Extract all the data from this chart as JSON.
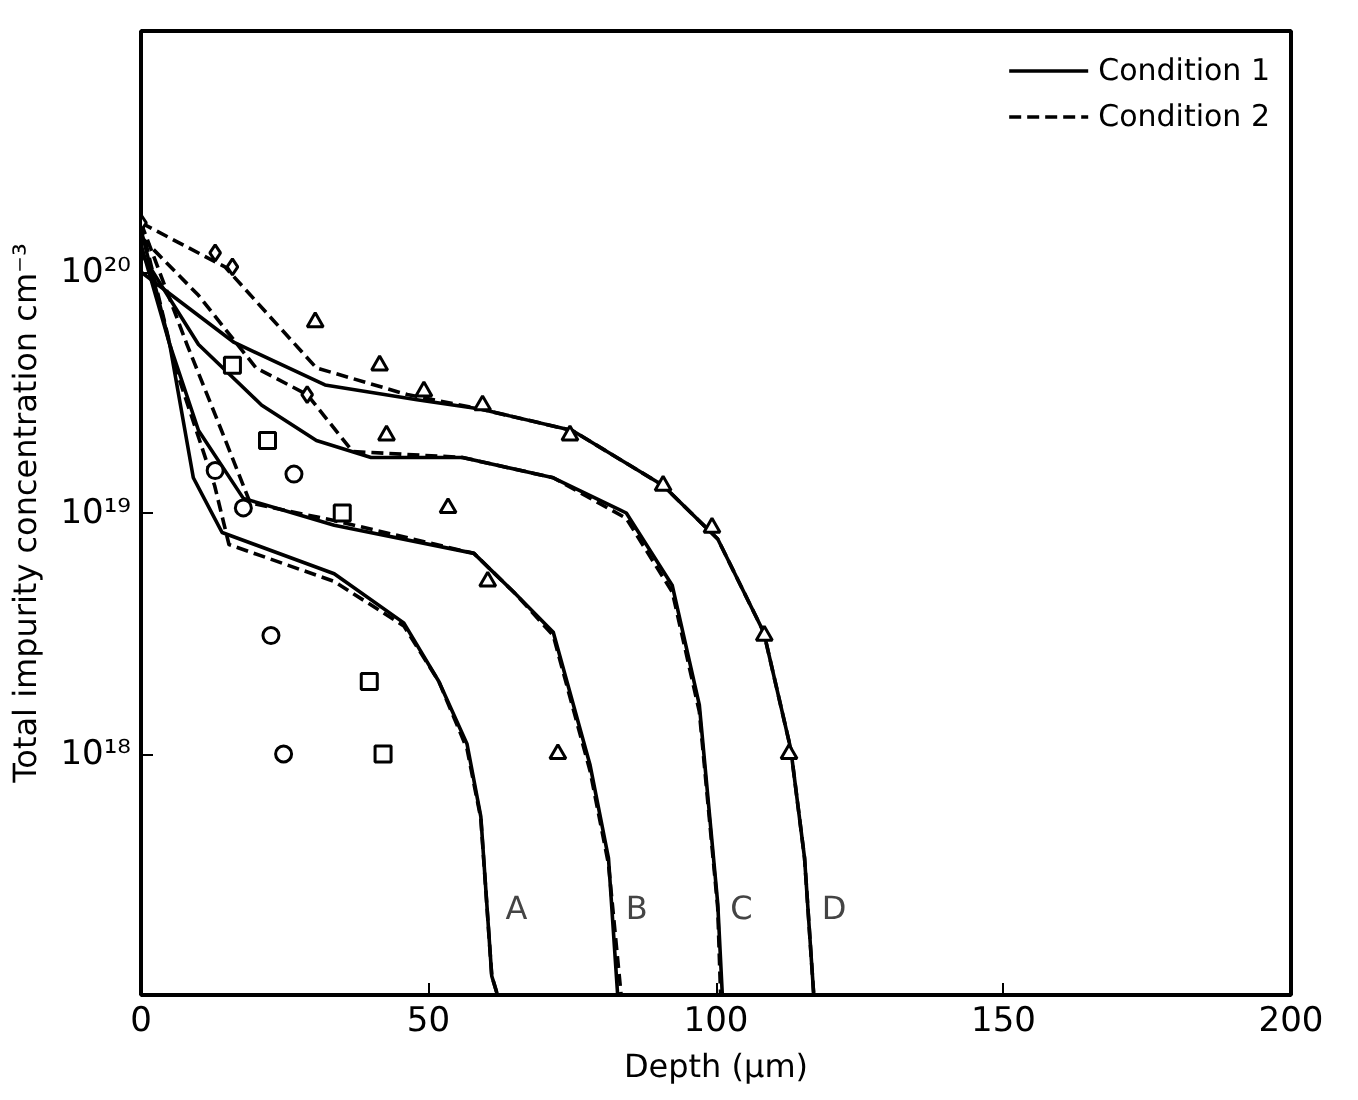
{
  "chart_data": {
    "type": "line",
    "xlabel": "Depth (μm)",
    "ylabel": "Total impurity concentration cm⁻³",
    "xlim": [
      0,
      200
    ],
    "xticks": [
      0,
      50,
      100,
      150,
      200
    ],
    "ylim": [
      1e+17,
      1e+21
    ],
    "yticks": [
      {
        "value": 1e+18,
        "label": "10¹⁸"
      },
      {
        "value": 1e+19,
        "label": "10¹⁹"
      },
      {
        "value": 1e+20,
        "label": "10²⁰"
      }
    ],
    "log": "y",
    "grid": false,
    "legend": "top right",
    "series": [
      {
        "name": "Condition 1",
        "line_style": "solid",
        "color": "#000000",
        "x": [
          0,
          5,
          9.1,
          14.1,
          33.6,
          45.7,
          51.8,
          56.7,
          59.1,
          61,
          62
        ],
        "values": [
          1.5e+20,
          5e+19,
          1.4e+19,
          8.3e+18,
          5.6e+18,
          3.5e+18,
          2e+18,
          1.1e+18,
          5.5e+17,
          1.2e+17,
          1e+17
        ]
      },
      {
        "name": "Condition 2",
        "line_style": "dashed",
        "color": "#000000",
        "x": [
          0,
          6,
          12.8,
          15.3,
          33.6,
          45.7,
          51.8,
          56.7,
          59.1,
          61,
          62
        ],
        "values": [
          1.6e+20,
          4e+19,
          1.3e+19,
          7.4e+18,
          5.2e+18,
          3.4e+18,
          2e+18,
          1.05e+18,
          5.4e+17,
          1.2e+17,
          1e+17
        ]
      },
      {
        "type": "line",
        "line_style": "solid",
        "color": "#000000",
        "x": [
          0,
          5,
          10,
          17.8,
          33.6,
          57.9,
          65.2,
          71.7,
          78.1,
          81.3,
          82.9
        ],
        "values": [
          1.3e+20,
          5e+19,
          2.2e+19,
          1.15e+19,
          8.9e+18,
          6.8e+18,
          4.6e+18,
          3.2e+18,
          9e+17,
          3.7e+17,
          1e+17
        ]
      },
      {
        "type": "line",
        "line_style": "dashed",
        "color": "#000000",
        "x": [
          0,
          8,
          14,
          19,
          33.6,
          57.9,
          65.2,
          71.7,
          78.1,
          81.3,
          83.5
        ],
        "values": [
          1.6e+20,
          5e+19,
          2.2e+19,
          1.1e+19,
          9.3e+18,
          6.8e+18,
          4.6e+18,
          3.1e+18,
          8.5e+17,
          3.5e+17,
          1e+17
        ]
      },
      {
        "type": "line",
        "line_style": "solid",
        "color": "#000000",
        "x": [
          0,
          10,
          21,
          30.5,
          40,
          55.9,
          71.7,
          84.4,
          92.4,
          97.1,
          100.3,
          101.1
        ],
        "values": [
          1.2e+20,
          5e+19,
          2.8e+19,
          2e+19,
          1.7e+19,
          1.7e+19,
          1.4e+19,
          1e+19,
          5e+18,
          1.6e+18,
          2.4e+17,
          1e+17
        ]
      },
      {
        "type": "line",
        "line_style": "dashed",
        "color": "#000000",
        "x": [
          0,
          10,
          20,
          28.9,
          36.8,
          55.9,
          71.7,
          84.4,
          92.4,
          97.1,
          100.3,
          100.8
        ],
        "values": [
          1.4e+20,
          8e+19,
          4e+19,
          3.1e+19,
          1.8e+19,
          1.7e+19,
          1.4e+19,
          9.5e+18,
          4.7e+18,
          1.5e+18,
          2.3e+17,
          1e+17
        ]
      },
      {
        "type": "line",
        "line_style": "solid",
        "color": "#000000",
        "x": [
          0,
          16.2,
          32,
          48,
          59,
          75,
          90.8,
          100.3,
          108.3,
          113,
          115.4,
          117
        ],
        "values": [
          1e+20,
          5.1e+19,
          3.4e+19,
          2.95e+19,
          2.7e+19,
          2.2e+19,
          1.3e+19,
          7.8e+18,
          3.2e+18,
          1.05e+18,
          3.7e+17,
          1e+17
        ]
      },
      {
        "type": "line",
        "line_style": "dashed",
        "color": "#000000",
        "x": [
          0,
          14.6,
          30.5,
          46.3,
          59,
          75,
          90.8,
          100.3,
          108.3,
          113,
          115.4,
          117
        ],
        "values": [
          1.6e+20,
          1.05e+20,
          4e+19,
          3.1e+19,
          2.7e+19,
          2.2e+19,
          1.3e+19,
          7.8e+18,
          3.2e+18,
          1.05e+18,
          3.7e+17,
          1e+17
        ]
      },
      {
        "type": "scatter",
        "marker": "circle",
        "color": "#000000",
        "x": [
          12.9,
          17.8,
          22.6,
          24.8,
          26.6
        ],
        "values": [
          1.5e+19,
          1.05e+19,
          3.1e+18,
          1e+18,
          1.45e+19
        ]
      },
      {
        "type": "scatter",
        "marker": "square",
        "color": "#000000",
        "x": [
          15.9,
          22,
          35,
          39.7,
          42.1
        ],
        "values": [
          4.1e+19,
          2e+19,
          1e+19,
          2e+18,
          1e+18
        ]
      },
      {
        "type": "scatter",
        "marker": "triangle",
        "color": "#000000",
        "x": [
          42.7,
          53.4,
          60.3,
          72.5,
          30.3,
          41.5,
          49.2,
          59.4,
          74.6,
          90.8,
          99.3,
          108.4,
          112.7
        ],
        "values": [
          2.1e+19,
          1.05e+19,
          5.2e+18,
          1e+18,
          6.2e+19,
          4.1e+19,
          3.2e+19,
          2.8e+19,
          2.1e+19,
          1.3e+19,
          8.7e+18,
          3.1e+18,
          1e+18
        ]
      },
      {
        "type": "scatter",
        "marker": "diamond",
        "color": "#000000",
        "x": [
          0,
          12.9,
          15.9,
          28.9
        ],
        "values": [
          1.6e+20,
          1.2e+20,
          1.05e+20,
          3.1e+19
        ]
      }
    ],
    "annotations": [
      "A",
      "B",
      "C",
      "D"
    ]
  }
}
